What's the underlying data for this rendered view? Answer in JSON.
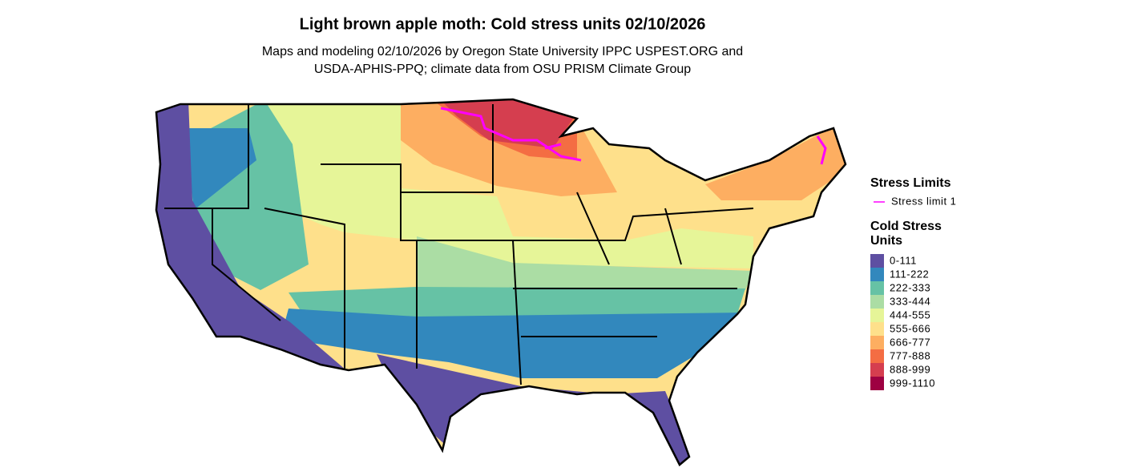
{
  "header": {
    "title": "Light brown apple moth: Cold stress units 02/10/2026",
    "subtitle_lines": [
      "Maps and modeling 02/10/2026 by Oregon State University IPPC USPEST.ORG and",
      "USDA-APHIS-PPQ; climate data from OSU PRISM Climate Group"
    ]
  },
  "legend": {
    "stress_limits": {
      "title": "Stress Limits",
      "items": [
        {
          "label": "Stress limit 1",
          "color": "#ff00ff"
        }
      ]
    },
    "cold_stress": {
      "title_lines": [
        "Cold Stress",
        "Units"
      ],
      "items": [
        {
          "label": "0-111",
          "color": "#5e4fa2"
        },
        {
          "label": "111-222",
          "color": "#3288bd"
        },
        {
          "label": "222-333",
          "color": "#66c2a5"
        },
        {
          "label": "333-444",
          "color": "#abdda4"
        },
        {
          "label": "444-555",
          "color": "#e6f598"
        },
        {
          "label": "555-666",
          "color": "#fee08b"
        },
        {
          "label": "666-777",
          "color": "#fdae61"
        },
        {
          "label": "777-888",
          "color": "#f46d43"
        },
        {
          "label": "888-999",
          "color": "#d53e4f"
        },
        {
          "label": "999-1110",
          "color": "#9e0142"
        }
      ]
    }
  }
}
